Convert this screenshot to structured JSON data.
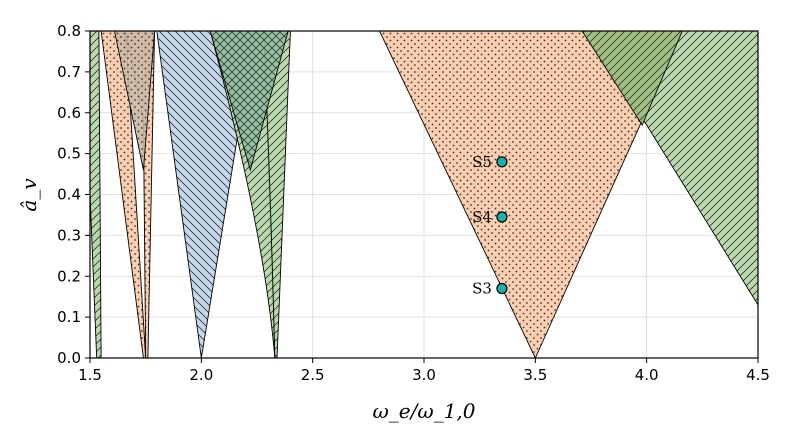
{
  "chart_data": {
    "type": "area",
    "title": "",
    "xlabel": "ω_e/ω_1,0",
    "ylabel": "â_v",
    "xlim": [
      1.5,
      4.5
    ],
    "ylim": [
      0.0,
      0.8
    ],
    "grid": true,
    "xticks": [
      "1.5",
      "2.0",
      "2.5",
      "3.0",
      "3.5",
      "4.0",
      "4.5"
    ],
    "yticks": [
      "0.0",
      "0.1",
      "0.2",
      "0.3",
      "0.4",
      "0.5",
      "0.6",
      "0.7",
      "0.8"
    ],
    "regions": [
      {
        "fill": "#b3d5a3",
        "hatch": "diag-up",
        "curved": false,
        "polygon": [
          [
            1.47,
            0.8
          ],
          [
            1.54,
            0.8
          ],
          [
            1.55,
            0.0
          ],
          [
            1.53,
            0.0
          ]
        ]
      },
      {
        "fill": "#f9c9a6",
        "hatch": "dots",
        "curved": false,
        "polygon": [
          [
            1.55,
            0.8
          ],
          [
            1.66,
            0.8
          ],
          [
            1.75,
            0.0
          ],
          [
            1.74,
            0.0
          ]
        ]
      },
      {
        "fill": "#f9c9a6",
        "hatch": "dots",
        "curved": false,
        "polygon": [
          [
            1.79,
            0.8
          ],
          [
            1.66,
            0.8
          ],
          [
            1.74,
            0.58
          ],
          [
            1.75,
            0.0
          ],
          [
            1.76,
            0.0
          ]
        ]
      },
      {
        "fill": "#bfd5ea",
        "hatch": "diag-down",
        "curved": false,
        "polygon": [
          [
            1.8,
            0.8
          ],
          [
            2.0,
            0.0
          ],
          [
            2.24,
            0.8
          ]
        ]
      },
      {
        "fill": "#b3d5a3",
        "hatch": "diag-up",
        "curved": false,
        "polygon": [
          [
            2.28,
            0.8
          ],
          [
            2.33,
            0.0
          ],
          [
            2.34,
            0.0
          ],
          [
            2.4,
            0.8
          ]
        ]
      },
      {
        "fill": "#b3d5a3",
        "hatch": "diag-up",
        "curved": true,
        "polygon": [
          [
            2.04,
            0.8
          ],
          [
            2.33,
            0.0
          ],
          [
            2.28,
            0.8
          ]
        ]
      },
      {
        "fill": "#f9c9a6",
        "hatch": "dots",
        "curved": false,
        "polygon": [
          [
            2.8,
            0.8
          ],
          [
            3.5,
            0.0
          ],
          [
            4.16,
            0.8
          ]
        ]
      },
      {
        "fill": "#b3d5a3",
        "hatch": "diag-up",
        "curved": false,
        "polygon": [
          [
            3.71,
            0.8
          ],
          [
            4.5,
            0.8
          ],
          [
            4.5,
            0.13
          ],
          [
            4.0,
            0.57
          ]
        ]
      },
      {
        "fill": "#9dbf7e",
        "hatch": "diag-up",
        "curved": false,
        "polygon": [
          [
            3.71,
            0.8
          ],
          [
            4.16,
            0.8
          ],
          [
            3.98,
            0.57
          ]
        ]
      },
      {
        "fill": "#cbb8a3",
        "hatch": "dots",
        "curved": false,
        "polygon": [
          [
            1.61,
            0.8
          ],
          [
            1.79,
            0.8
          ],
          [
            1.74,
            0.46
          ]
        ]
      },
      {
        "fill": "#8fc0a0",
        "hatch": "cross",
        "curved": false,
        "polygon": [
          [
            2.04,
            0.8
          ],
          [
            2.39,
            0.8
          ],
          [
            2.22,
            0.46
          ]
        ]
      }
    ],
    "points": [
      {
        "label": "S5",
        "x": 3.35,
        "y": 0.48
      },
      {
        "label": "S4",
        "x": 3.35,
        "y": 0.345
      },
      {
        "label": "S3",
        "x": 3.35,
        "y": 0.17
      }
    ],
    "point_color": "#1ab0b0"
  }
}
